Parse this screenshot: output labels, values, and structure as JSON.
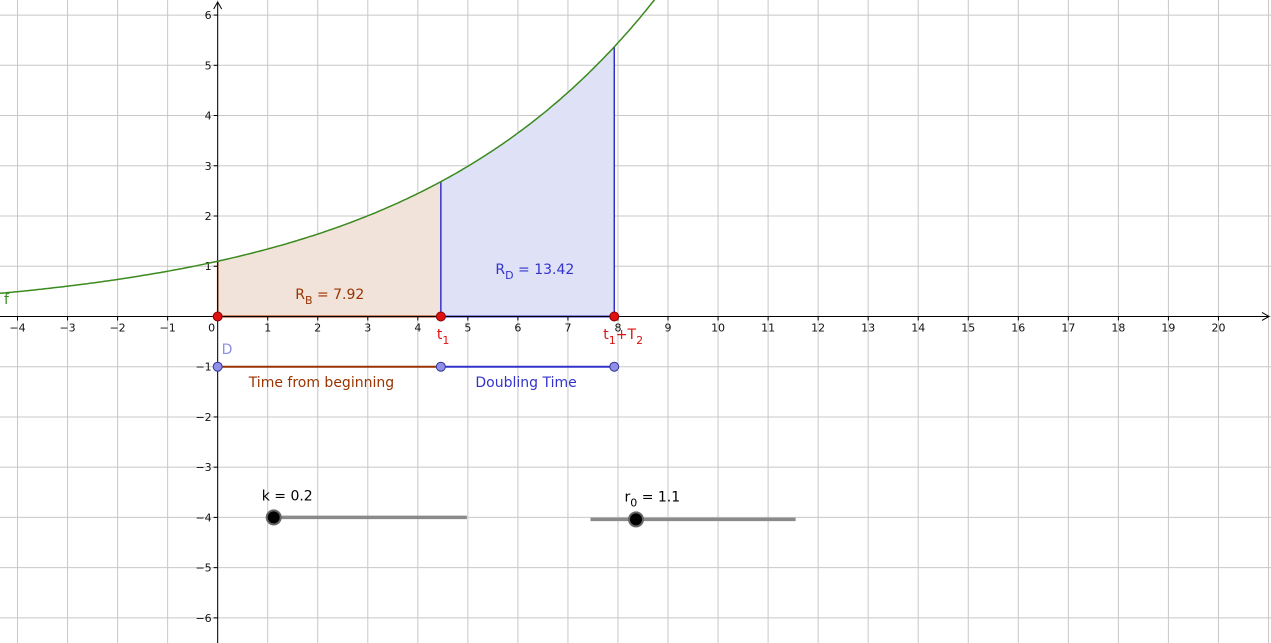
{
  "axes": {
    "x_tick_labels": [
      "−4",
      "−3",
      "−2",
      "−1",
      "0",
      "1",
      "2",
      "3",
      "4",
      "5",
      "6",
      "7",
      "8",
      "9",
      "10",
      "11",
      "12",
      "13",
      "14",
      "15",
      "16",
      "17",
      "18",
      "19",
      "20"
    ],
    "y_tick_labels": [
      "6",
      "5",
      "4",
      "3",
      "2",
      "1",
      "−1",
      "−2",
      "−3",
      "−4",
      "−5",
      "−6"
    ],
    "x_range": [
      -4.35,
      21.05
    ],
    "y_range": [
      -6.5,
      6.3
    ],
    "grid": true
  },
  "function": {
    "name": "f",
    "color": "#3a8a1e"
  },
  "labels": {
    "rb_main": "R",
    "rb_sub": "B",
    "rb_value": " = 7.92",
    "rd_main": "R",
    "rd_sub": "D",
    "rd_value": " = 13.42",
    "t1_main": "t",
    "t1_sub": "1",
    "t1t2_main": "t",
    "t1t2_sub1": "1",
    "t1t2_plus": "+T",
    "t1t2_sub2": "2",
    "point_d": "D",
    "time_from_beginning": "Time from beginning",
    "doubling_time": "Doubling Time"
  },
  "sliders": {
    "k": {
      "label": "k = 0.2",
      "value": 0.2
    },
    "r0": {
      "label_main": "r",
      "label_sub": "0",
      "label_value": " = 1.1",
      "value": 1.1
    }
  },
  "colors": {
    "brown": "#993300",
    "blue": "#3333cc",
    "red": "#e01010",
    "point_blue": "#8f8fe8",
    "fill_brown": "#f1e3d9",
    "fill_blue": "#dfe1f6",
    "grid": "#c8c8c8"
  }
}
